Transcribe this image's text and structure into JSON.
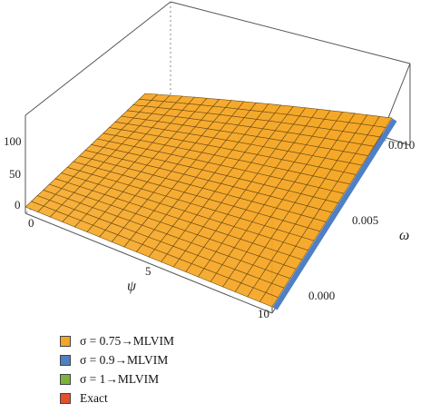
{
  "chart_data": {
    "type": "surface3d",
    "x_axis": {
      "label": "ψ",
      "range": [
        0,
        10
      ],
      "ticks": [
        "0",
        "5",
        "10"
      ]
    },
    "y_axis": {
      "label": "ω",
      "range": [
        0,
        0.01
      ],
      "ticks": [
        "0.000",
        "0.005",
        "0.010"
      ]
    },
    "z_axis": {
      "label": "",
      "range": [
        0,
        120
      ],
      "ticks": [
        "0",
        "50",
        "100"
      ]
    },
    "surface": {
      "description_points": [
        {
          "psi": 0,
          "omega": 0,
          "u": 0
        },
        {
          "psi": 10,
          "omega": 0,
          "u": 0
        },
        {
          "psi": 0,
          "omega": 0.01,
          "u": 35
        },
        {
          "psi": 10,
          "omega": 0.01,
          "u": 118
        }
      ]
    },
    "series": [
      {
        "name": "σ = 0.75→MLVIM",
        "color": "#f5a623"
      },
      {
        "name": "σ = 0.9→MLVIM",
        "color": "#4f7fc4"
      },
      {
        "name": "σ = 1→MLVIM",
        "color": "#7cb33b"
      },
      {
        "name": "Exact",
        "color": "#e0522d"
      }
    ],
    "legend_position": "bottom-left"
  }
}
